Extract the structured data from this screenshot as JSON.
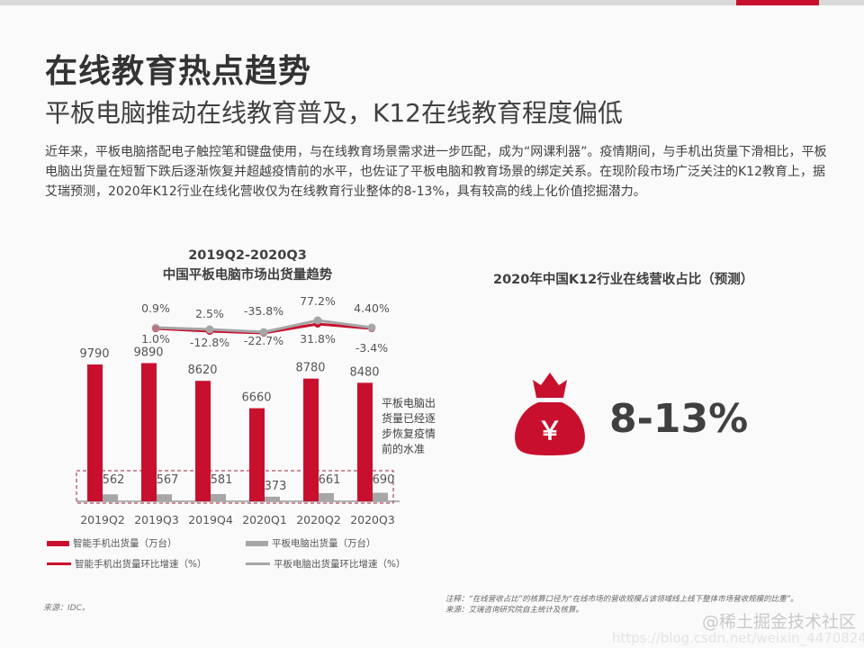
{
  "header": {
    "title": "在线教育热点趋势",
    "subtitle": "平板电脑推动在线教育普及，K12在线教育程度偏低",
    "paragraph": "近年来，平板电脑搭配电子触控笔和键盘使用，与在线教育场景需求进一步匹配，成为“网课利器”。疫情期间，与手机出货量下滑相比，平板电脑出货量在短暂下跌后逐渐恢复并超越疫情前的水平，也佐证了平板电脑和教育场景的绑定关系。在现阶段市场广泛关注的K12教育上，据艾瑞预测，2020年K12行业在线化营收仅为在线教育行业整体的8-13%，具有较高的线上化价值挖掘潜力。"
  },
  "colors": {
    "accent": "#c8102e",
    "gray": "#a6a6a6",
    "text": "#404040"
  },
  "chart_data": [
    {
      "type": "bar",
      "title": "2019Q2-2020Q3 中国平板电脑市场出货量趋势",
      "title_lines": [
        "2019Q2-2020Q3",
        "中国平板电脑市场出货量趋势"
      ],
      "categories": [
        "2019Q2",
        "2019Q3",
        "2019Q4",
        "2020Q1",
        "2020Q2",
        "2020Q3"
      ],
      "series": [
        {
          "name": "智能手机出货量（万台）",
          "kind": "bar",
          "color": "#c8102e",
          "values": [
            9790,
            9890,
            8620,
            6660,
            8780,
            8480
          ]
        },
        {
          "name": "平板电脑出货量（万台）",
          "kind": "bar",
          "color": "#a6a6a6",
          "values": [
            562,
            567,
            581,
            373,
            661,
            690
          ]
        },
        {
          "name": "智能手机出货量环比增速（%）",
          "kind": "line",
          "color": "#c8102e",
          "values": [
            null,
            1.0,
            -12.8,
            -22.7,
            31.8,
            -3.4
          ],
          "labels": [
            "",
            "1.0%",
            "-12.8%",
            "-22.7%",
            "31.8%",
            "-3.4%"
          ]
        },
        {
          "name": "平板电脑出货量环比增速（%）",
          "kind": "line",
          "color": "#a6a6a6",
          "values": [
            null,
            0.9,
            2.5,
            -35.8,
            77.2,
            4.4
          ],
          "labels": [
            "",
            "0.9%",
            "2.5%",
            "-35.8%",
            "77.2%",
            "4.40%"
          ]
        }
      ],
      "annotation": "平板电脑出货量已经逐步恢复疫情前的水准",
      "legend_position": "bottom",
      "grid": false,
      "source": "来源：IDC。"
    },
    {
      "type": "table",
      "title": "2020年中国K12行业在线营收占比（预测）",
      "value": "8-13%",
      "icon": "money-bag-icon"
    }
  ],
  "right_panel": {
    "title": "2020年中国K12行业在线营收占比（预测）",
    "value": "8-13%",
    "icon_glyph": "￥"
  },
  "legend": {
    "smartphone_bar": "智能手机出货量（万台）",
    "tablet_bar": "平板电脑出货量（万台）",
    "smartphone_line": "智能手机出货量环比增速（%）",
    "tablet_line": "平板电脑出货量环比增速（%）"
  },
  "footer": {
    "source_left": "来源：IDC。",
    "note_line1": "注释：“在线营收占比”的核算口径为“在线市场的营收规模占该领域线上线下整体市场营收规模的比重”。",
    "note_line2": "来源：艾瑞咨询研究院自主统计及核算。",
    "watermark1": "@稀土掘金技术社区",
    "watermark2": "https://blog.csdn.net/weixin_44708240"
  }
}
